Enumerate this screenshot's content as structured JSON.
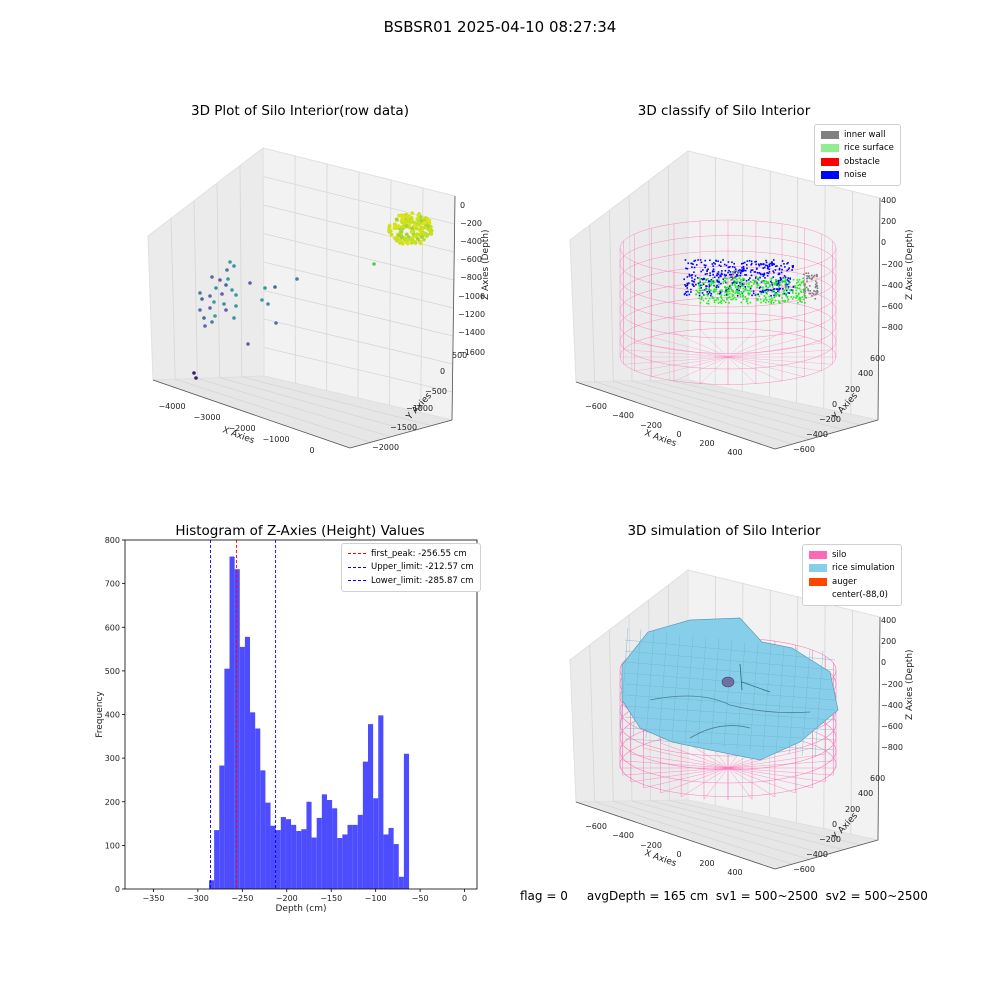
{
  "suptitle": "BSBSR01 2025-04-10 08:27:34",
  "status_text": "flag = 0     avgDepth = 165 cm  sv1 = 500~2500  sv2 = 500~2500",
  "colors": {
    "inner_wall": "#808080",
    "rice_surface": "#90ee90",
    "obstacle": "#ff0000",
    "noise": "#0000ff",
    "silo": "#ff69b4",
    "rice_simulation": "#87ceeb",
    "auger": "#ff4500",
    "hist_bar": "#4d4dff"
  },
  "chart_data": [
    {
      "type": "scatter",
      "projection": "3d",
      "title": "3D Plot of Silo Interior(row data)",
      "xlabel": "X Axies",
      "ylabel": "Y Axies",
      "zlabel": "Z Axies (Depth)",
      "x_ticks": [
        "−4000",
        "−3000",
        "−2000",
        "−1000",
        "0"
      ],
      "y_ticks": [
        "500",
        "0",
        "−500",
        "−1000",
        "−1500",
        "−2000"
      ],
      "z_ticks": [
        "0",
        "−200",
        "−400",
        "−600",
        "−800",
        "−1000",
        "−1200",
        "−1400",
        "−1600"
      ],
      "grid": true
    },
    {
      "type": "scatter",
      "projection": "3d",
      "title": "3D classify of Silo Interior",
      "xlabel": "X Axies",
      "ylabel": "Y Axies",
      "zlabel": "Z Axies (Depth)",
      "x_ticks": [
        "−600",
        "−400",
        "−200",
        "0",
        "200",
        "400"
      ],
      "y_ticks": [
        "600",
        "400",
        "200",
        "0",
        "−200",
        "−400",
        "−600"
      ],
      "z_ticks": [
        "400",
        "200",
        "0",
        "−200",
        "−400",
        "−600",
        "−800"
      ],
      "legend": [
        "inner wall",
        "rice surface",
        "obstacle",
        "noise"
      ],
      "legend_position": "top-right",
      "grid": true
    },
    {
      "type": "bar",
      "title": "Histogram of Z-Axies (Height) Values",
      "xlabel": "Depth (cm)",
      "ylabel": "Frequency",
      "xlim": [
        -382,
        14
      ],
      "ylim": [
        0,
        800
      ],
      "x_ticks": [
        "−350",
        "−300",
        "−250",
        "−200",
        "−150",
        "−100",
        "−50",
        "0"
      ],
      "y_ticks": [
        "0",
        "100",
        "200",
        "300",
        "400",
        "500",
        "600",
        "700",
        "800"
      ],
      "bin_start": -287.5,
      "bin_width": 5.77,
      "values": [
        20,
        135,
        283,
        505,
        762,
        733,
        555,
        578,
        405,
        368,
        272,
        198,
        145,
        135,
        165,
        160,
        147,
        133,
        137,
        200,
        118,
        163,
        217,
        204,
        185,
        117,
        125,
        147,
        147,
        170,
        292,
        378,
        208,
        398,
        125,
        140,
        103,
        28,
        310
      ],
      "vlines": [
        {
          "label": "first_peak: -256.55 cm",
          "x": -256.55,
          "color": "#ff0000"
        },
        {
          "label": "Upper_limit: -212.57 cm",
          "x": -212.57,
          "color": "#0000ff"
        },
        {
          "label": "Lower_limit: -285.87 cm",
          "x": -285.87,
          "color": "#0000ff"
        }
      ],
      "legend_position": "top-right"
    },
    {
      "type": "surface",
      "projection": "3d",
      "title": "3D simulation of Silo Interior",
      "xlabel": "X Axies",
      "ylabel": "Y Axies",
      "zlabel": "Z Axies (Depth)",
      "x_ticks": [
        "−600",
        "−400",
        "−200",
        "0",
        "200",
        "400"
      ],
      "y_ticks": [
        "600",
        "400",
        "200",
        "0",
        "−200",
        "−400",
        "−600"
      ],
      "z_ticks": [
        "400",
        "200",
        "0",
        "−200",
        "−400",
        "−600",
        "−800"
      ],
      "legend": [
        "silo",
        "rice simulation",
        "auger",
        "center(-88,0)"
      ],
      "legend_position": "top-right",
      "grid": true
    }
  ]
}
